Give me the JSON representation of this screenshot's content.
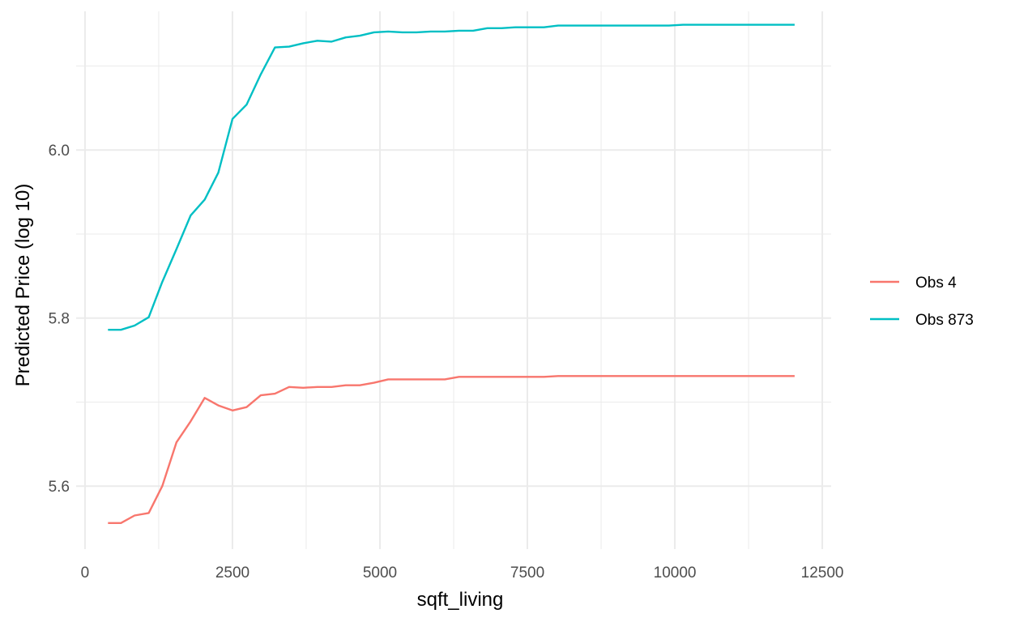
{
  "chart_data": {
    "type": "line",
    "title": "",
    "xlabel": "sqft_living",
    "ylabel": "Predicted Price (log 10)",
    "xlim": [
      -150,
      12650
    ],
    "ylim": [
      5.525,
      6.165
    ],
    "x_ticks": [
      0,
      2500,
      5000,
      7500,
      10000,
      12500
    ],
    "x_tick_labels": [
      "0",
      "2500",
      "5000",
      "7500",
      "10000",
      "12500"
    ],
    "x_minor_ticks": [
      1250,
      3750,
      6250,
      8750,
      11250
    ],
    "y_ticks": [
      5.6,
      5.8,
      6.0
    ],
    "y_tick_labels": [
      "5.6",
      "5.8",
      "6.0"
    ],
    "y_minor_ticks": [
      5.7,
      5.9,
      6.1
    ],
    "grid": true,
    "legend_position": "right",
    "x": [
      390,
      610,
      840,
      1080,
      1310,
      1550,
      1790,
      2030,
      2260,
      2500,
      2740,
      2980,
      3220,
      3460,
      3700,
      3940,
      4180,
      4420,
      4660,
      4900,
      5140,
      5380,
      5620,
      5860,
      6100,
      6340,
      6580,
      6820,
      7060,
      7300,
      7540,
      7780,
      8020,
      9900,
      10140,
      12030
    ],
    "series": [
      {
        "name": "Obs 4",
        "color": "#F8766D",
        "values": [
          5.556,
          5.556,
          5.565,
          5.568,
          5.6,
          5.652,
          5.677,
          5.705,
          5.696,
          5.69,
          5.694,
          5.708,
          5.71,
          5.718,
          5.717,
          5.718,
          5.718,
          5.72,
          5.72,
          5.723,
          5.727,
          5.727,
          5.727,
          5.727,
          5.727,
          5.73,
          5.73,
          5.73,
          5.73,
          5.73,
          5.73,
          5.73,
          5.731,
          5.731,
          5.731,
          5.731
        ]
      },
      {
        "name": "Obs 873",
        "color": "#00BFC4",
        "values": [
          5.786,
          5.786,
          5.791,
          5.801,
          5.843,
          5.882,
          5.922,
          5.941,
          5.973,
          6.037,
          6.054,
          6.09,
          6.122,
          6.123,
          6.127,
          6.13,
          6.129,
          6.134,
          6.136,
          6.14,
          6.141,
          6.14,
          6.14,
          6.141,
          6.141,
          6.142,
          6.142,
          6.145,
          6.145,
          6.146,
          6.146,
          6.146,
          6.148,
          6.148,
          6.149,
          6.149
        ]
      }
    ]
  }
}
